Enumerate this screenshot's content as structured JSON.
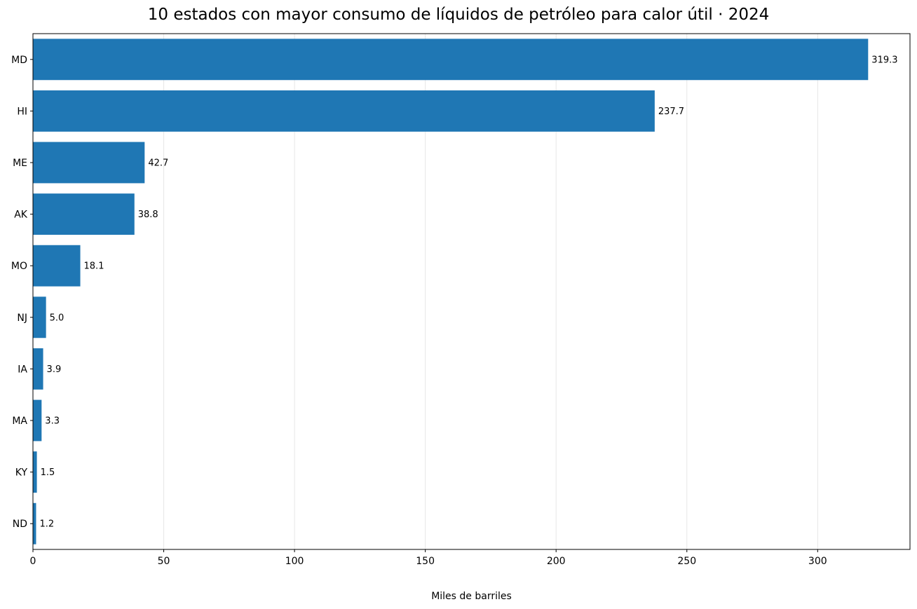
{
  "chart_data": {
    "type": "bar",
    "orientation": "horizontal",
    "title": "10 estados con mayor consumo de líquidos de petróleo para calor útil · 2024",
    "xlabel": "Miles de barriles",
    "ylabel": "",
    "categories": [
      "MD",
      "HI",
      "ME",
      "AK",
      "MO",
      "NJ",
      "IA",
      "MA",
      "KY",
      "ND"
    ],
    "values": [
      319.3,
      237.7,
      42.7,
      38.8,
      18.1,
      5.0,
      3.9,
      3.3,
      1.5,
      1.2
    ],
    "value_labels": [
      "319.3",
      "237.7",
      "42.7",
      "38.8",
      "18.1",
      "5.0",
      "3.9",
      "3.3",
      "1.5",
      "1.2"
    ],
    "xlim": [
      0,
      335.3
    ],
    "xticks": [
      0,
      50,
      100,
      150,
      200,
      250,
      300
    ],
    "xtick_labels": [
      "0",
      "50",
      "100",
      "150",
      "200",
      "250",
      "300"
    ],
    "grid": "vertical",
    "bar_color": "#1f77b4",
    "grid_color": "#e6e6e6"
  }
}
